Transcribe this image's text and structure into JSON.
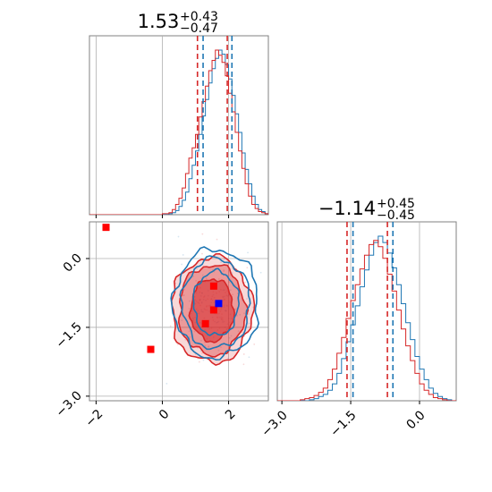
{
  "chart_data": {
    "type": "corner",
    "colors": {
      "red": "#d62728",
      "blue": "#1f77b4",
      "marker_blue": "#0000ff",
      "marker_red": "#ff0000",
      "grid": "#b0b0b0"
    },
    "panels": {
      "hist_x": {
        "title": {
          "main": "1.53",
          "plus": "+0.43",
          "minus": "−0.47"
        },
        "xlim": [
          -2.2,
          3.2
        ],
        "quantiles_red": [
          1.06,
          1.96
        ],
        "quantiles_blue": [
          1.23,
          2.1
        ],
        "hist_red": {
          "edges_start": 0.0,
          "bin_width": 0.1,
          "counts": [
            1,
            1,
            2,
            5,
            10,
            16,
            26,
            40,
            55,
            65,
            78,
            95,
            110,
            125,
            140,
            150,
            160,
            155,
            148,
            135,
            118,
            100,
            80,
            62,
            45,
            30,
            18,
            10,
            6,
            3,
            2,
            1
          ]
        },
        "hist_blue": {
          "edges_start": 0.2,
          "bin_width": 0.1,
          "counts": [
            1,
            2,
            4,
            8,
            14,
            22,
            35,
            48,
            62,
            78,
            96,
            112,
            128,
            142,
            152,
            160,
            156,
            146,
            132,
            116,
            98,
            80,
            60,
            44,
            30,
            18,
            10,
            5,
            3,
            1
          ]
        }
      },
      "hist_y": {
        "title": {
          "main": "−1.14",
          "plus": "+0.45",
          "minus": "−0.45"
        },
        "xlim": [
          -3.1,
          0.8
        ],
        "xticks": [
          "−3.0",
          "−1.5",
          "0.0"
        ],
        "xtick_values": [
          -3.0,
          -1.5,
          0.0
        ],
        "quantiles_red": [
          -1.58,
          -0.7
        ],
        "quantiles_blue": [
          -1.45,
          -0.58
        ],
        "hist_red": {
          "edges_start": -2.6,
          "bin_width": 0.1,
          "counts": [
            1,
            2,
            3,
            5,
            8,
            12,
            20,
            30,
            45,
            60,
            78,
            95,
            110,
            125,
            138,
            148,
            152,
            146,
            135,
            120,
            104,
            86,
            68,
            52,
            38,
            26,
            16,
            10,
            6,
            3,
            2,
            1
          ]
        },
        "hist_blue": {
          "edges_start": -2.4,
          "bin_width": 0.1,
          "counts": [
            1,
            2,
            4,
            6,
            10,
            16,
            26,
            40,
            56,
            72,
            90,
            108,
            124,
            138,
            150,
            156,
            150,
            140,
            126,
            110,
            92,
            74,
            58,
            42,
            30,
            20,
            12,
            7,
            4,
            2,
            1
          ]
        }
      },
      "scatter_2d": {
        "xlim": [
          -2.2,
          3.2
        ],
        "ylim": [
          -3.1,
          0.8
        ],
        "xticks": [
          "−2",
          "0",
          "2"
        ],
        "xtick_values": [
          -2,
          0,
          2
        ],
        "yticks": [
          "0.0",
          "−1.5",
          "−3.0"
        ],
        "ytick_values": [
          0.0,
          -1.5,
          -3.0
        ],
        "contours": [
          {
            "color": "red",
            "center": [
              1.5,
              -1.12
            ],
            "rx": 0.65,
            "ry": 0.68,
            "fill_alpha": 0.55
          },
          {
            "color": "red",
            "center": [
              1.5,
              -1.12
            ],
            "rx": 1.0,
            "ry": 0.98,
            "fill_alpha": 0.35
          },
          {
            "color": "red",
            "center": [
              1.5,
              -1.12
            ],
            "rx": 1.22,
            "ry": 1.15,
            "fill_alpha": 0.18
          },
          {
            "color": "blue",
            "center": [
              1.62,
              -0.98
            ],
            "rx": 0.68,
            "ry": 0.7,
            "fill_alpha": 0
          },
          {
            "color": "blue",
            "center": [
              1.62,
              -0.98
            ],
            "rx": 1.02,
            "ry": 0.98,
            "fill_alpha": 0
          },
          {
            "color": "blue",
            "center": [
              1.62,
              -0.98
            ],
            "rx": 1.28,
            "ry": 1.18,
            "fill_alpha": 0
          }
        ],
        "markers_red": [
          [
            -1.7,
            0.68
          ],
          [
            -0.35,
            -1.98
          ],
          [
            1.55,
            -0.6
          ],
          [
            1.55,
            -1.12
          ],
          [
            1.3,
            -1.42
          ]
        ],
        "markers_blue": [
          [
            1.7,
            -0.98
          ]
        ]
      }
    }
  }
}
